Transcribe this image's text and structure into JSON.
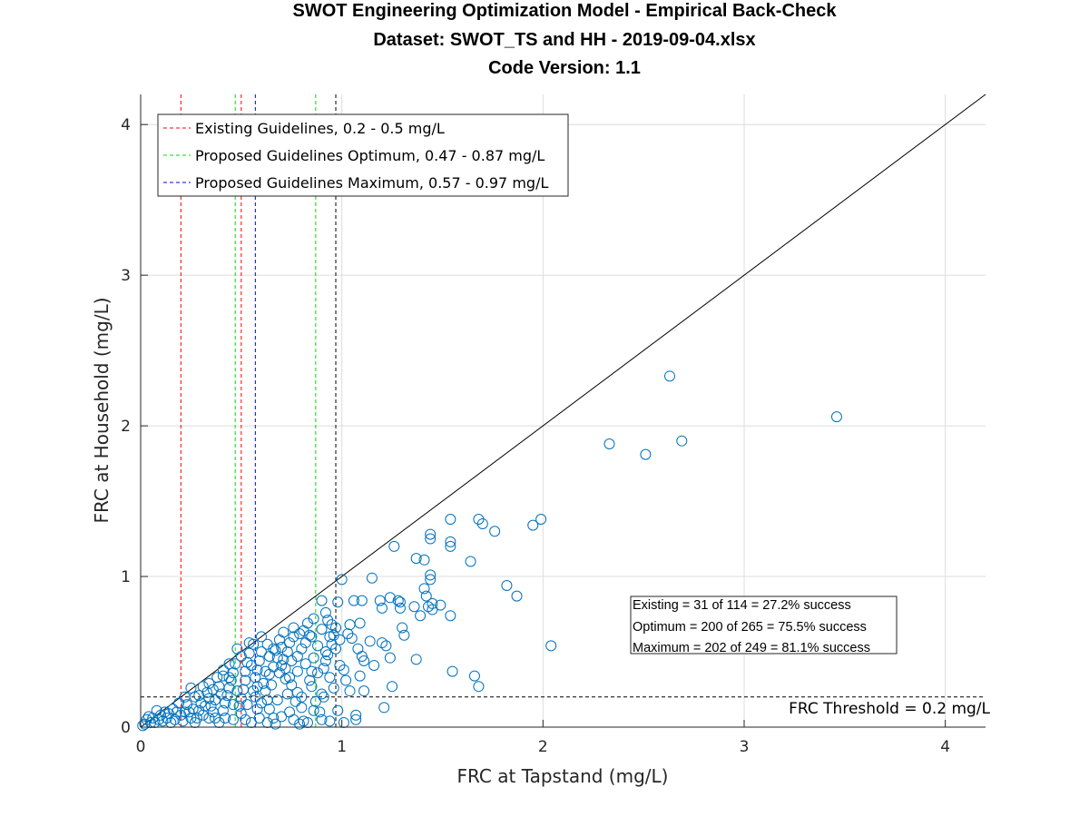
{
  "chart_data": {
    "type": "scatter",
    "title": [
      "SWOT Engineering Optimization Model - Empirical Back-Check",
      "Dataset: SWOT_TS and HH - 2019-09-04.xlsx",
      "Code Version: 1.1"
    ],
    "xlabel": "FRC at Tapstand (mg/L)",
    "ylabel": "FRC at Household (mg/L)",
    "xlim": [
      0,
      4.2
    ],
    "ylim": [
      0,
      4.2
    ],
    "xticks": [
      "0",
      "1",
      "2",
      "3",
      "4"
    ],
    "yticks": [
      "0",
      "1",
      "2",
      "3",
      "4"
    ],
    "grid": true,
    "legend_position": "top-left",
    "colors": {
      "points": "#0072BD",
      "existing": "#FF0000",
      "optimum": "#00DD00",
      "maximum": "#0000FF",
      "reference": "#000000"
    },
    "legend": [
      {
        "label": "Existing Guidelines, 0.2 - 0.5 mg/L",
        "color": "#FF0000"
      },
      {
        "label": "Proposed Guidelines Optimum, 0.47 - 0.87 mg/L",
        "color": "#00DD00"
      },
      {
        "label": "Proposed Guidelines Maximum, 0.57 - 0.97 mg/L",
        "color": "#0000FF"
      }
    ],
    "vertical_lines": [
      {
        "x": 0.2,
        "color": "#FF0000"
      },
      {
        "x": 0.5,
        "color": "#FF0000"
      },
      {
        "x": 0.47,
        "color": "#00DD00"
      },
      {
        "x": 0.87,
        "color": "#00DD00"
      },
      {
        "x": 0.57,
        "color": "#0000FF"
      },
      {
        "x": 0.97,
        "color": "#000000"
      }
    ],
    "threshold": {
      "y": 0.2,
      "label": "FRC Threshold = 0.2 mg/L"
    },
    "stats": [
      "Existing =  31 of 114 = 27.2% success",
      "Optimum = 200 of 265 = 75.5% success",
      "Maximum = 202 of 249 = 81.1% success"
    ],
    "points": [
      [
        2.63,
        2.33
      ],
      [
        3.46,
        2.06
      ],
      [
        2.33,
        1.88
      ],
      [
        2.69,
        1.9
      ],
      [
        2.51,
        1.81
      ],
      [
        1.99,
        1.38
      ],
      [
        1.95,
        1.34
      ],
      [
        1.68,
        1.38
      ],
      [
        1.7,
        1.35
      ],
      [
        1.76,
        1.3
      ],
      [
        1.54,
        1.38
      ],
      [
        1.44,
        1.28
      ],
      [
        1.44,
        1.25
      ],
      [
        1.54,
        1.23
      ],
      [
        1.54,
        1.2
      ],
      [
        1.26,
        1.2
      ],
      [
        1.37,
        1.12
      ],
      [
        1.41,
        1.11
      ],
      [
        1.64,
        1.1
      ],
      [
        1.44,
        1.01
      ],
      [
        1.44,
        0.98
      ],
      [
        1.15,
        0.99
      ],
      [
        1.0,
        0.98
      ],
      [
        0.98,
        0.83
      ],
      [
        1.82,
        0.94
      ],
      [
        1.87,
        0.87
      ],
      [
        1.41,
        0.92
      ],
      [
        1.42,
        0.87
      ],
      [
        1.24,
        0.86
      ],
      [
        1.28,
        0.84
      ],
      [
        1.29,
        0.83
      ],
      [
        1.29,
        0.79
      ],
      [
        1.06,
        0.84
      ],
      [
        1.1,
        0.84
      ],
      [
        0.9,
        0.84
      ],
      [
        1.36,
        0.8
      ],
      [
        1.43,
        0.8
      ],
      [
        1.45,
        0.82
      ],
      [
        1.49,
        0.81
      ],
      [
        1.45,
        0.78
      ],
      [
        1.39,
        0.74
      ],
      [
        1.54,
        0.74
      ],
      [
        1.19,
        0.84
      ],
      [
        1.2,
        0.79
      ],
      [
        1.3,
        0.66
      ],
      [
        1.31,
        0.61
      ],
      [
        1.2,
        0.56
      ],
      [
        1.22,
        0.54
      ],
      [
        1.24,
        0.46
      ],
      [
        1.14,
        0.57
      ],
      [
        1.09,
        0.69
      ],
      [
        1.04,
        0.68
      ],
      [
        1.03,
        0.62
      ],
      [
        1.08,
        0.52
      ],
      [
        1.1,
        0.47
      ],
      [
        1.11,
        0.44
      ],
      [
        1.01,
        0.38
      ],
      [
        1.09,
        0.34
      ],
      [
        1.02,
        0.31
      ],
      [
        1.11,
        0.24
      ],
      [
        1.04,
        0.24
      ],
      [
        0.99,
        0.58
      ],
      [
        0.97,
        0.66
      ],
      [
        0.96,
        0.61
      ],
      [
        0.95,
        0.55
      ],
      [
        0.93,
        0.48
      ],
      [
        0.92,
        0.44
      ],
      [
        0.91,
        0.39
      ],
      [
        0.94,
        0.33
      ],
      [
        0.96,
        0.26
      ],
      [
        0.98,
        0.11
      ],
      [
        1.07,
        0.08
      ],
      [
        1.07,
        0.05
      ],
      [
        1.01,
        0.03
      ],
      [
        0.94,
        0.04
      ],
      [
        0.9,
        0.05
      ],
      [
        0.86,
        0.11
      ],
      [
        0.91,
        0.2
      ],
      [
        0.9,
        0.22
      ],
      [
        0.85,
        0.27
      ],
      [
        0.86,
        0.46
      ],
      [
        0.88,
        0.54
      ],
      [
        0.84,
        0.61
      ],
      [
        0.83,
        0.69
      ],
      [
        0.86,
        0.72
      ],
      [
        0.92,
        0.76
      ],
      [
        0.93,
        0.71
      ],
      [
        0.81,
        0.64
      ],
      [
        0.79,
        0.62
      ],
      [
        0.76,
        0.6
      ],
      [
        0.74,
        0.56
      ],
      [
        0.73,
        0.5
      ],
      [
        0.71,
        0.45
      ],
      [
        0.7,
        0.41
      ],
      [
        0.69,
        0.36
      ],
      [
        0.72,
        0.32
      ],
      [
        0.75,
        0.28
      ],
      [
        0.78,
        0.23
      ],
      [
        0.8,
        0.2
      ],
      [
        0.77,
        0.17
      ],
      [
        0.74,
        0.1
      ],
      [
        0.76,
        0.05
      ],
      [
        0.81,
        0.04
      ],
      [
        0.83,
        0.03
      ],
      [
        0.79,
        0.02
      ],
      [
        0.67,
        0.02
      ],
      [
        0.66,
        0.06
      ],
      [
        0.64,
        0.12
      ],
      [
        0.63,
        0.18
      ],
      [
        0.62,
        0.24
      ],
      [
        0.61,
        0.29
      ],
      [
        0.64,
        0.35
      ],
      [
        0.66,
        0.4
      ],
      [
        0.68,
        0.46
      ],
      [
        0.66,
        0.52
      ],
      [
        0.63,
        0.55
      ],
      [
        0.6,
        0.5
      ],
      [
        0.59,
        0.44
      ],
      [
        0.58,
        0.38
      ],
      [
        0.57,
        0.33
      ],
      [
        0.58,
        0.27
      ],
      [
        0.57,
        0.2
      ],
      [
        0.58,
        0.12
      ],
      [
        0.59,
        0.06
      ],
      [
        0.55,
        0.03
      ],
      [
        0.52,
        0.05
      ],
      [
        0.5,
        0.09
      ],
      [
        0.49,
        0.14
      ],
      [
        0.5,
        0.19
      ],
      [
        0.51,
        0.25
      ],
      [
        0.52,
        0.31
      ],
      [
        0.52,
        0.37
      ],
      [
        0.53,
        0.43
      ],
      [
        0.54,
        0.49
      ],
      [
        0.56,
        0.55
      ],
      [
        0.5,
        0.47
      ],
      [
        0.47,
        0.42
      ],
      [
        0.46,
        0.36
      ],
      [
        0.45,
        0.31
      ],
      [
        0.44,
        0.26
      ],
      [
        0.43,
        0.21
      ],
      [
        0.42,
        0.16
      ],
      [
        0.41,
        0.11
      ],
      [
        0.42,
        0.06
      ],
      [
        0.39,
        0.03
      ],
      [
        0.37,
        0.06
      ],
      [
        0.36,
        0.1
      ],
      [
        0.35,
        0.14
      ],
      [
        0.34,
        0.19
      ],
      [
        0.33,
        0.23
      ],
      [
        0.34,
        0.29
      ],
      [
        0.38,
        0.33
      ],
      [
        0.41,
        0.38
      ],
      [
        0.44,
        0.42
      ],
      [
        0.41,
        0.34
      ],
      [
        0.31,
        0.27
      ],
      [
        0.29,
        0.21
      ],
      [
        0.3,
        0.16
      ],
      [
        0.29,
        0.11
      ],
      [
        0.28,
        0.06
      ],
      [
        0.27,
        0.03
      ],
      [
        0.25,
        0.06
      ],
      [
        0.24,
        0.1
      ],
      [
        0.23,
        0.15
      ],
      [
        0.22,
        0.2
      ],
      [
        0.25,
        0.26
      ],
      [
        0.19,
        0.16
      ],
      [
        0.18,
        0.1
      ],
      [
        0.17,
        0.05
      ],
      [
        0.15,
        0.03
      ],
      [
        0.13,
        0.06
      ],
      [
        0.12,
        0.1
      ],
      [
        0.1,
        0.08
      ],
      [
        0.09,
        0.05
      ],
      [
        0.08,
        0.11
      ],
      [
        0.06,
        0.06
      ],
      [
        0.05,
        0.03
      ],
      [
        0.04,
        0.07
      ],
      [
        0.03,
        0.05
      ],
      [
        0.01,
        0.01
      ],
      [
        0.02,
        0.02
      ],
      [
        0.07,
        0.03
      ],
      [
        0.11,
        0.04
      ],
      [
        0.14,
        0.09
      ],
      [
        0.16,
        0.12
      ],
      [
        0.2,
        0.08
      ],
      [
        0.21,
        0.04
      ],
      [
        0.26,
        0.12
      ],
      [
        0.31,
        0.08
      ],
      [
        0.32,
        0.14
      ],
      [
        0.37,
        0.18
      ],
      [
        0.4,
        0.22
      ],
      [
        0.46,
        0.15
      ],
      [
        0.48,
        0.24
      ],
      [
        0.53,
        0.15
      ],
      [
        0.56,
        0.24
      ],
      [
        0.6,
        0.16
      ],
      [
        0.62,
        0.37
      ],
      [
        0.65,
        0.28
      ],
      [
        0.68,
        0.18
      ],
      [
        0.69,
        0.58
      ],
      [
        0.71,
        0.63
      ],
      [
        0.72,
        0.39
      ],
      [
        0.73,
        0.22
      ],
      [
        0.75,
        0.44
      ],
      [
        0.78,
        0.37
      ],
      [
        0.8,
        0.52
      ],
      [
        0.82,
        0.42
      ],
      [
        0.84,
        0.31
      ],
      [
        0.85,
        0.6
      ],
      [
        0.88,
        0.36
      ],
      [
        0.9,
        0.65
      ],
      [
        0.94,
        0.6
      ],
      [
        0.97,
        0.52
      ],
      [
        0.99,
        0.41
      ],
      [
        0.87,
        0.17
      ],
      [
        0.89,
        0.1
      ],
      [
        0.8,
        0.13
      ],
      [
        0.7,
        0.07
      ],
      [
        0.63,
        0.03
      ],
      [
        0.46,
        0.05
      ],
      [
        0.34,
        0.06
      ],
      [
        0.22,
        0.1
      ],
      [
        0.6,
        0.6
      ],
      [
        0.54,
        0.56
      ],
      [
        0.48,
        0.52
      ],
      [
        0.44,
        0.33
      ],
      [
        0.39,
        0.27
      ],
      [
        0.36,
        0.25
      ],
      [
        0.27,
        0.2
      ],
      [
        0.55,
        0.41
      ],
      [
        0.64,
        0.47
      ],
      [
        0.67,
        0.51
      ],
      [
        0.7,
        0.53
      ],
      [
        0.76,
        0.66
      ],
      [
        0.82,
        0.56
      ],
      [
        0.92,
        0.5
      ],
      [
        0.85,
        0.37
      ],
      [
        0.78,
        0.47
      ],
      [
        0.74,
        0.33
      ],
      [
        1.16,
        0.41
      ],
      [
        1.21,
        0.13
      ],
      [
        1.37,
        0.45
      ],
      [
        1.55,
        0.37
      ],
      [
        1.66,
        0.34
      ],
      [
        1.68,
        0.27
      ],
      [
        2.04,
        0.54
      ],
      [
        1.25,
        0.27
      ],
      [
        1.05,
        0.59
      ],
      [
        0.95,
        0.68
      ]
    ]
  }
}
